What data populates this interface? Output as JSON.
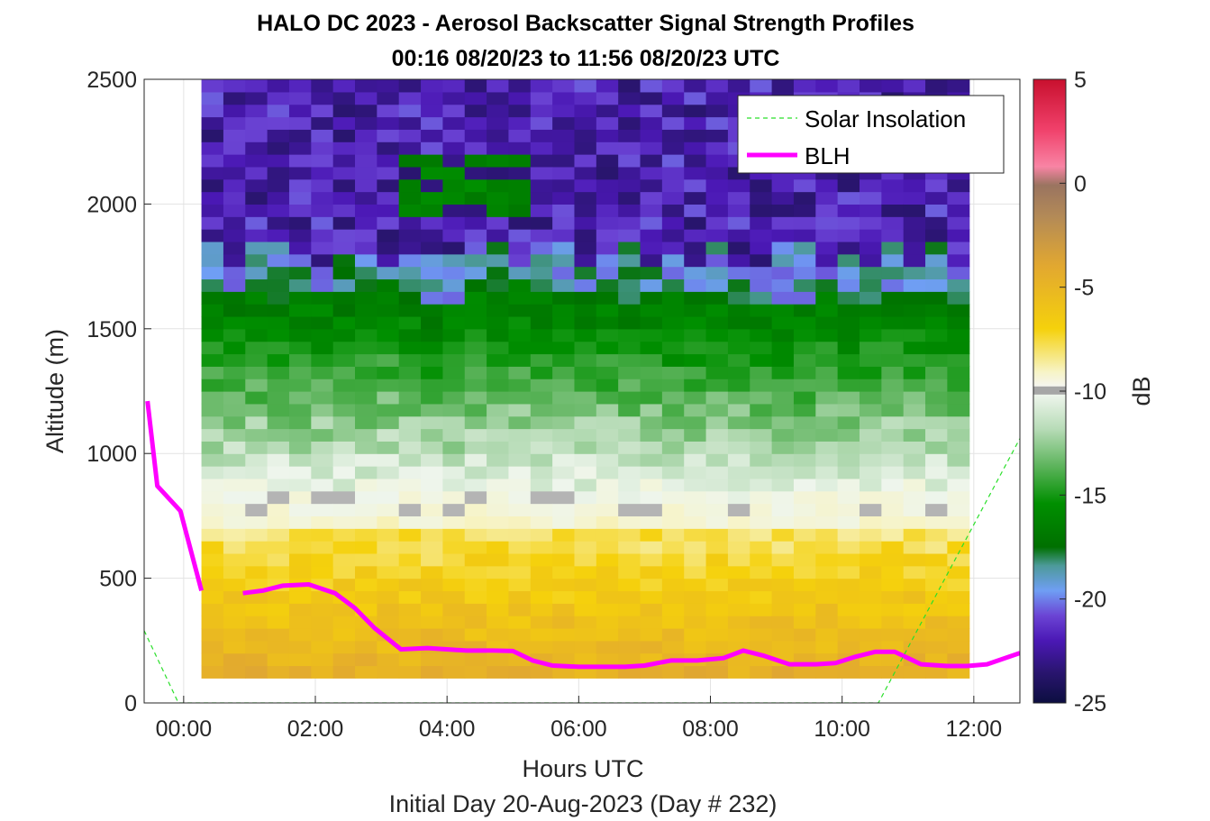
{
  "chart_data": {
    "type": "heatmap",
    "title": "HALO DC 2023 - Aerosol Backscatter Signal Strength Profiles",
    "subtitle": "00:16 08/20/23 to 11:56 08/20/23  UTC",
    "xlabel": "Hours UTC",
    "xlabel2": "Initial Day 20-Aug-2023 (Day # 232)",
    "ylabel": "Altitude (m)",
    "xlim": [
      -0.6,
      12.7
    ],
    "ylim": [
      0,
      2500
    ],
    "x_ticks": [
      0,
      2,
      4,
      6,
      8,
      10,
      12
    ],
    "x_tick_labels": [
      "00:00",
      "02:00",
      "04:00",
      "06:00",
      "08:00",
      "10:00",
      "12:00"
    ],
    "y_ticks": [
      0,
      500,
      1000,
      1500,
      2000,
      2500
    ],
    "y_tick_labels": [
      "0",
      "500",
      "1000",
      "1500",
      "2000",
      "2500"
    ],
    "grid": true,
    "colorbar": {
      "label": "dB",
      "clim": [
        -25,
        5
      ],
      "ticks": [
        5,
        0,
        -5,
        -10,
        -15,
        -20,
        -25
      ],
      "tick_labels": [
        "5",
        "0",
        "-5",
        "-10",
        "-15",
        "-20",
        "-25"
      ]
    },
    "heatmap": {
      "time_start": 0.27,
      "time_end": 11.93,
      "altitude_start": 100,
      "altitude_end": 2500,
      "altitude_step": 50,
      "time_columns": 35,
      "layers": [
        {
          "from": 100,
          "to": 700,
          "value_db": -6,
          "description": "near-surface aerosol layer"
        },
        {
          "from": 700,
          "to": 850,
          "value_db": -9.5
        },
        {
          "from": 850,
          "to": 1650,
          "value_db": -14
        },
        {
          "from": 1650,
          "to": 1800,
          "value_db": -19
        },
        {
          "from": 1800,
          "to": 2500,
          "value_db": -22
        }
      ],
      "missing_value_color": "#b4b4b4"
    },
    "legend": {
      "position": "top-right",
      "entries": [
        {
          "label": "Solar Insolation",
          "color": "#2adf2a",
          "style": "dashed"
        },
        {
          "label": "BLH",
          "color": "#ff00ff",
          "style": "solid"
        }
      ]
    },
    "series": [
      {
        "name": "BLH",
        "color": "#ff00ff",
        "x": [
          -0.55,
          -0.4,
          -0.05,
          0.27,
          0.6,
          0.9,
          1.2,
          1.5,
          1.9,
          2.3,
          2.6,
          2.9,
          3.3,
          3.7,
          4.0,
          4.3,
          4.7,
          5.0,
          5.3,
          5.6,
          6.0,
          6.4,
          6.7,
          7.0,
          7.4,
          7.8,
          8.2,
          8.5,
          8.8,
          9.2,
          9.6,
          9.9,
          10.2,
          10.5,
          10.8,
          11.2,
          11.6,
          11.9,
          12.2,
          12.7
        ],
        "y": [
          1210,
          870,
          770,
          450,
          null,
          440,
          450,
          470,
          475,
          440,
          380,
          300,
          215,
          220,
          215,
          210,
          210,
          208,
          170,
          150,
          145,
          145,
          145,
          150,
          170,
          170,
          180,
          210,
          190,
          155,
          155,
          160,
          185,
          205,
          205,
          155,
          148,
          148,
          155,
          200
        ],
        "gap_at_index": 4
      },
      {
        "name": "Solar Insolation",
        "color": "#2adf2a",
        "x": [
          -0.6,
          -0.08,
          10.55,
          12.7
        ],
        "y": [
          290,
          0,
          0,
          1060
        ]
      }
    ]
  }
}
